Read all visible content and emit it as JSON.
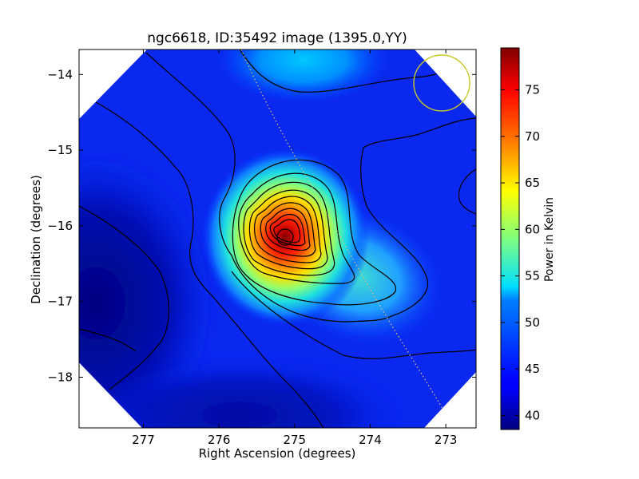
{
  "chart_data": {
    "type": "heatmap",
    "title": "ngc6618, ID:35492 image (1395.0,YY)",
    "xlabel": "Right Ascension (degrees)",
    "ylabel": "Declination (degrees)",
    "colorbar_label": "Power in Kelvin",
    "colormap": "jet",
    "xlim": [
      277.85,
      272.6
    ],
    "ylim": [
      -18.67,
      -13.67
    ],
    "clim": [
      38.5,
      79.5
    ],
    "x_ticks": [
      {
        "value": 277,
        "label": "277"
      },
      {
        "value": 276,
        "label": "276"
      },
      {
        "value": 275,
        "label": "275"
      },
      {
        "value": 274,
        "label": "274"
      },
      {
        "value": 273,
        "label": "273"
      }
    ],
    "y_ticks": [
      {
        "value": -14,
        "label": "−14"
      },
      {
        "value": -15,
        "label": "−15"
      },
      {
        "value": -16,
        "label": "−16"
      },
      {
        "value": -17,
        "label": "−17"
      },
      {
        "value": -18,
        "label": "−18"
      }
    ],
    "colorbar_ticks": [
      {
        "value": 40,
        "label": "40"
      },
      {
        "value": 45,
        "label": "45"
      },
      {
        "value": 50,
        "label": "50"
      },
      {
        "value": 55,
        "label": "55"
      },
      {
        "value": 60,
        "label": "60"
      },
      {
        "value": 65,
        "label": "65"
      },
      {
        "value": 70,
        "label": "70"
      },
      {
        "value": 75,
        "label": "75"
      }
    ],
    "peak": {
      "ra": 275.05,
      "dec": -16.15,
      "value": 79
    },
    "secondary_ridge": {
      "ra": 274.0,
      "dec": -17.0,
      "value": 55
    },
    "beam_circle": {
      "ra": 273.0,
      "dec": -14.13,
      "radius_deg": 0.37
    },
    "grid": false,
    "colors": {
      "contour": "#000000",
      "beam": "#c8c828",
      "track": "#d9c27a"
    }
  }
}
